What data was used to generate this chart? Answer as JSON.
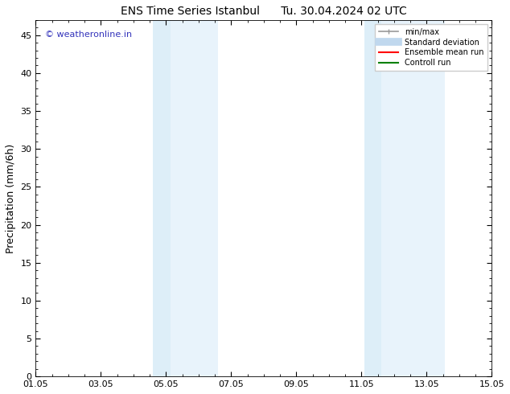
{
  "title": "ENS Time Series Istanbul      Tu. 30.04.2024 02 UTC",
  "ylabel": "Precipitation (mm/6h)",
  "ylim": [
    0,
    47
  ],
  "yticks": [
    0,
    5,
    10,
    15,
    20,
    25,
    30,
    35,
    40,
    45
  ],
  "xlim": [
    0,
    14
  ],
  "xtick_labels": [
    "01.05",
    "03.05",
    "05.05",
    "07.05",
    "09.05",
    "11.05",
    "13.05",
    "15.05"
  ],
  "xtick_positions": [
    0,
    2,
    4,
    6,
    8,
    10,
    12,
    14
  ],
  "shaded_regions": [
    {
      "x_start": 3.6,
      "x_end": 4.15,
      "color": "#ddeef8"
    },
    {
      "x_start": 4.15,
      "x_end": 5.6,
      "color": "#e8f3fb"
    },
    {
      "x_start": 10.1,
      "x_end": 10.6,
      "color": "#ddeef8"
    },
    {
      "x_start": 10.6,
      "x_end": 12.55,
      "color": "#e8f3fb"
    }
  ],
  "bg_color": "#ffffff",
  "plot_bg_color": "#ffffff",
  "watermark_text": "© weatheronline.in",
  "watermark_color": "#3333bb",
  "legend_items": [
    {
      "label": "min/max",
      "color": "#999999",
      "lw": 1.2
    },
    {
      "label": "Standard deviation",
      "color": "#c0d8ee",
      "lw": 7
    },
    {
      "label": "Ensemble mean run",
      "color": "#ff0000",
      "lw": 1.5
    },
    {
      "label": "Controll run",
      "color": "#008000",
      "lw": 1.5
    }
  ],
  "title_fontsize": 10,
  "tick_fontsize": 8,
  "ylabel_fontsize": 9,
  "watermark_fontsize": 8
}
